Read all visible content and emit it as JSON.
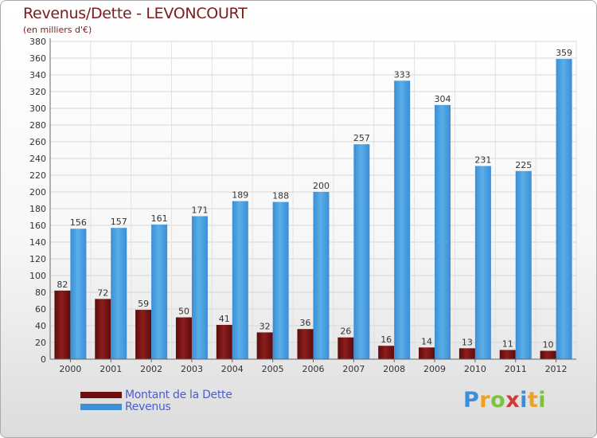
{
  "title": "Revenus/Dette - LEVONCOURT",
  "subtitle": "(en milliers d'€)",
  "chart_data": {
    "type": "bar",
    "categories": [
      "2000",
      "2001",
      "2002",
      "2003",
      "2004",
      "2005",
      "2006",
      "2007",
      "2008",
      "2009",
      "2010",
      "2011",
      "2012"
    ],
    "series": [
      {
        "name": "Montant de la Dette",
        "values": [
          82,
          72,
          59,
          50,
          41,
          32,
          36,
          26,
          16,
          14,
          13,
          11,
          10
        ],
        "color": "#7d1515"
      },
      {
        "name": "Revenus",
        "values": [
          156,
          157,
          161,
          171,
          189,
          188,
          200,
          257,
          333,
          304,
          231,
          225,
          359
        ],
        "color": "#4d9fdf"
      }
    ],
    "ylim": [
      0,
      380
    ],
    "yticks": [
      0,
      20,
      40,
      60,
      80,
      100,
      120,
      140,
      160,
      180,
      200,
      220,
      240,
      260,
      280,
      300,
      320,
      340,
      360,
      380
    ],
    "grid": true,
    "legend_position": "bottom-left"
  },
  "legend": {
    "items": [
      {
        "label": "Montant de la Dette",
        "color": "#6e1010"
      },
      {
        "label": "Revenus",
        "color": "#3f8fd4"
      }
    ]
  },
  "logo": {
    "letters": [
      "P",
      "r",
      "o",
      "x",
      "i",
      "t",
      "i"
    ],
    "colors": [
      "#3a8fd8",
      "#f0a020",
      "#7cc242",
      "#d23a3a",
      "#3a8fd8",
      "#f0a020",
      "#7cc242"
    ]
  }
}
